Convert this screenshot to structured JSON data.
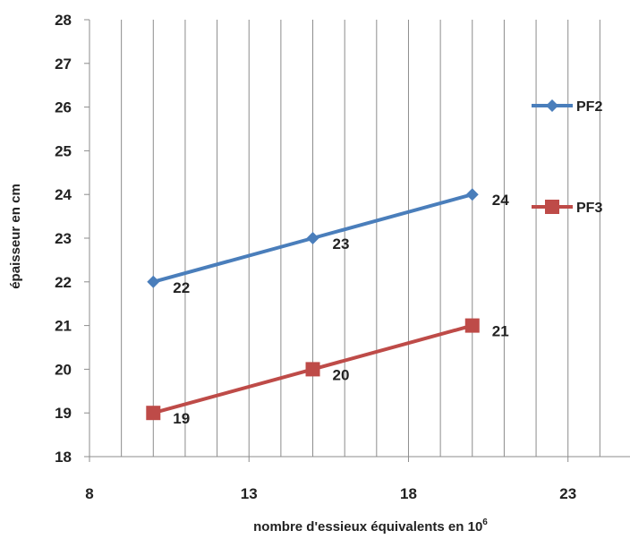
{
  "chart_data": {
    "type": "line",
    "xlabel": "nombre d'essieux équivalents en 10",
    "xlabel_superscript": "6",
    "ylabel": "épaisseur en cm",
    "xlim": [
      8,
      25
    ],
    "ylim": [
      18,
      28
    ],
    "x_ticks": [
      8,
      13,
      18,
      23
    ],
    "x_tick_labels": [
      "8",
      "13",
      "18",
      "23"
    ],
    "y_ticks": [
      18,
      19,
      20,
      21,
      22,
      23,
      24,
      25,
      26,
      27,
      28
    ],
    "y_tick_labels": [
      "18",
      "19",
      "20",
      "21",
      "22",
      "23",
      "24",
      "25",
      "26",
      "27",
      "28"
    ],
    "vertical_gridlines_every": 1,
    "grid": true,
    "legend_position": "right",
    "series": [
      {
        "name": "PF2",
        "color": "#4a7ebb",
        "marker": "diamond",
        "x": [
          10,
          15,
          20
        ],
        "y": [
          22,
          23,
          24
        ],
        "labels": [
          "22",
          "23",
          "24"
        ]
      },
      {
        "name": "PF3",
        "color": "#be4b48",
        "marker": "square",
        "x": [
          10,
          15,
          20
        ],
        "y": [
          19,
          20,
          21
        ],
        "labels": [
          "19",
          "20",
          "21"
        ]
      }
    ]
  }
}
